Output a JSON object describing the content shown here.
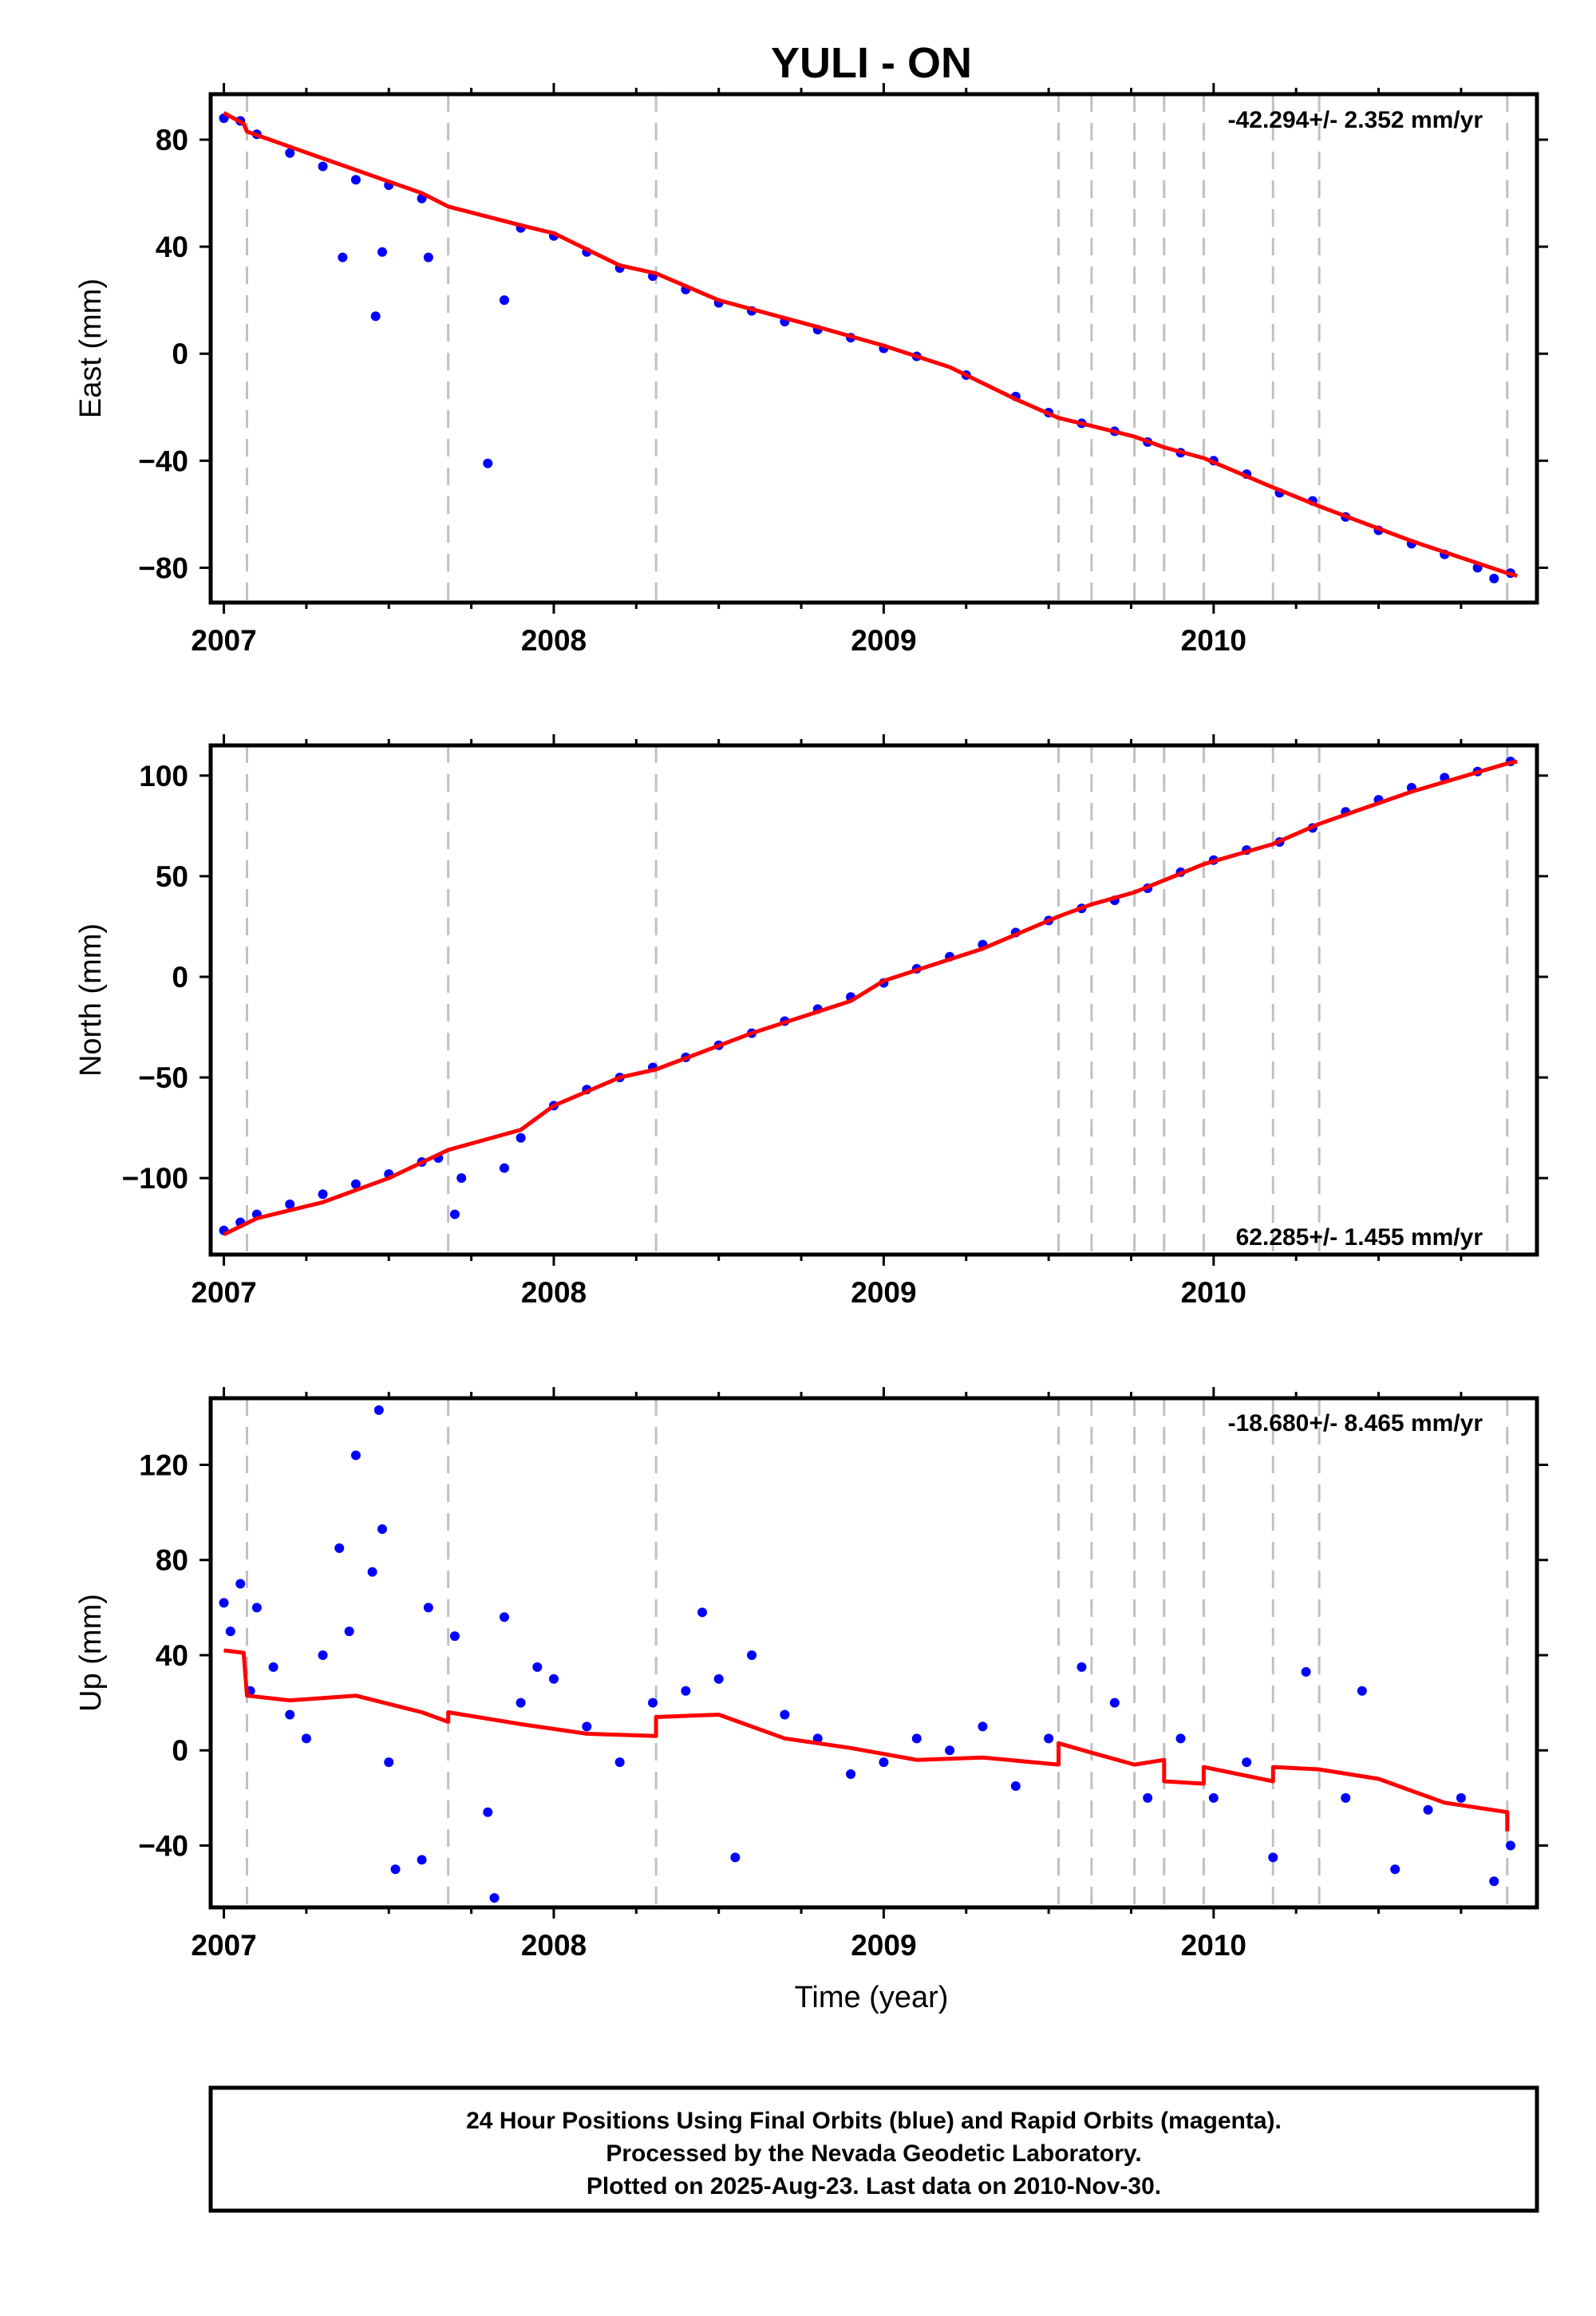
{
  "title": "YULI - ON",
  "xlabel": "Time (year)",
  "footer": {
    "line1": "24 Hour Positions Using Final Orbits (blue) and Rapid Orbits (magenta).",
    "line2": "Processed by the Nevada Geodetic Laboratory.",
    "line3": "Plotted on 2025-Aug-23. Last data on 2010-Nov-30."
  },
  "colors": {
    "observations": "#0000ff",
    "model": "#ff0000",
    "steps": "#c0c0c0"
  },
  "chart_data": [
    {
      "type": "scatter",
      "component": "east",
      "ylabel": "East (mm)",
      "rate_label": "-42.294+/- 2.352 mm/yr",
      "xlim": [
        2006.96,
        2010.98
      ],
      "ylim": [
        -93,
        97
      ],
      "x_ticks": [
        "2007",
        "2008",
        "2009",
        "2010"
      ],
      "y_ticks": [
        80,
        40,
        0,
        -40,
        -80
      ],
      "step_lines": [
        2007.07,
        2007.68,
        2008.31,
        2009.53,
        2009.63,
        2009.76,
        2009.85,
        2009.97,
        2010.18,
        2010.32,
        2010.89
      ],
      "model_line": [
        [
          2007.0,
          90
        ],
        [
          2007.06,
          86
        ],
        [
          2007.07,
          83
        ],
        [
          2007.3,
          73
        ],
        [
          2007.6,
          60
        ],
        [
          2007.68,
          55
        ],
        [
          2007.9,
          48
        ],
        [
          2008.0,
          45
        ],
        [
          2008.2,
          33
        ],
        [
          2008.31,
          30
        ],
        [
          2008.5,
          20
        ],
        [
          2008.8,
          10
        ],
        [
          2009.0,
          3
        ],
        [
          2009.2,
          -5
        ],
        [
          2009.4,
          -17
        ],
        [
          2009.53,
          -24
        ],
        [
          2009.63,
          -27
        ],
        [
          2009.76,
          -31
        ],
        [
          2009.85,
          -35
        ],
        [
          2009.97,
          -39
        ],
        [
          2010.18,
          -50
        ],
        [
          2010.32,
          -57
        ],
        [
          2010.6,
          -70
        ],
        [
          2010.89,
          -82
        ],
        [
          2010.92,
          -83
        ]
      ],
      "points": [
        [
          2007.0,
          88
        ],
        [
          2007.05,
          87
        ],
        [
          2007.1,
          82
        ],
        [
          2007.2,
          75
        ],
        [
          2007.3,
          70
        ],
        [
          2007.4,
          65
        ],
        [
          2007.5,
          63
        ],
        [
          2007.6,
          58
        ],
        [
          2007.36,
          36
        ],
        [
          2007.46,
          14
        ],
        [
          2007.48,
          38
        ],
        [
          2007.62,
          36
        ],
        [
          2007.8,
          -41
        ],
        [
          2007.85,
          20
        ],
        [
          2007.9,
          47
        ],
        [
          2008.0,
          44
        ],
        [
          2008.1,
          38
        ],
        [
          2008.2,
          32
        ],
        [
          2008.3,
          29
        ],
        [
          2008.4,
          24
        ],
        [
          2008.5,
          19
        ],
        [
          2008.6,
          16
        ],
        [
          2008.7,
          12
        ],
        [
          2008.8,
          9
        ],
        [
          2008.9,
          6
        ],
        [
          2009.0,
          2
        ],
        [
          2009.1,
          -1
        ],
        [
          2009.25,
          -8
        ],
        [
          2009.4,
          -16
        ],
        [
          2009.5,
          -22
        ],
        [
          2009.6,
          -26
        ],
        [
          2009.7,
          -29
        ],
        [
          2009.8,
          -33
        ],
        [
          2009.9,
          -37
        ],
        [
          2010.0,
          -40
        ],
        [
          2010.1,
          -45
        ],
        [
          2010.2,
          -52
        ],
        [
          2010.3,
          -55
        ],
        [
          2010.4,
          -61
        ],
        [
          2010.5,
          -66
        ],
        [
          2010.6,
          -71
        ],
        [
          2010.7,
          -75
        ],
        [
          2010.8,
          -80
        ],
        [
          2010.85,
          -84
        ],
        [
          2010.9,
          -82
        ]
      ]
    },
    {
      "type": "scatter",
      "component": "north",
      "ylabel": "North (mm)",
      "rate_label": "62.285+/- 1.455 mm/yr",
      "xlim": [
        2006.96,
        2010.98
      ],
      "ylim": [
        -138,
        115
      ],
      "x_ticks": [
        "2007",
        "2008",
        "2009",
        "2010"
      ],
      "y_ticks": [
        100,
        50,
        0,
        -50,
        -100
      ],
      "step_lines": [
        2007.07,
        2007.68,
        2008.31,
        2009.53,
        2009.63,
        2009.76,
        2009.85,
        2009.97,
        2010.18,
        2010.32,
        2010.89
      ],
      "model_line": [
        [
          2007.0,
          -128
        ],
        [
          2007.1,
          -120
        ],
        [
          2007.3,
          -112
        ],
        [
          2007.5,
          -100
        ],
        [
          2007.68,
          -86
        ],
        [
          2007.9,
          -76
        ],
        [
          2008.0,
          -64
        ],
        [
          2008.2,
          -50
        ],
        [
          2008.31,
          -46
        ],
        [
          2008.6,
          -28
        ],
        [
          2008.9,
          -12
        ],
        [
          2009.0,
          -2
        ],
        [
          2009.3,
          14
        ],
        [
          2009.53,
          30
        ],
        [
          2009.63,
          36
        ],
        [
          2009.76,
          42
        ],
        [
          2009.85,
          48
        ],
        [
          2009.97,
          56
        ],
        [
          2010.18,
          66
        ],
        [
          2010.32,
          76
        ],
        [
          2010.6,
          92
        ],
        [
          2010.89,
          106
        ],
        [
          2010.92,
          107
        ]
      ],
      "points": [
        [
          2007.0,
          -126
        ],
        [
          2007.05,
          -122
        ],
        [
          2007.1,
          -118
        ],
        [
          2007.2,
          -113
        ],
        [
          2007.3,
          -108
        ],
        [
          2007.4,
          -103
        ],
        [
          2007.5,
          -98
        ],
        [
          2007.6,
          -92
        ],
        [
          2007.65,
          -90
        ],
        [
          2007.7,
          -118
        ],
        [
          2007.72,
          -100
        ],
        [
          2007.85,
          -95
        ],
        [
          2007.9,
          -80
        ],
        [
          2008.0,
          -64
        ],
        [
          2008.1,
          -56
        ],
        [
          2008.2,
          -50
        ],
        [
          2008.3,
          -45
        ],
        [
          2008.4,
          -40
        ],
        [
          2008.5,
          -34
        ],
        [
          2008.6,
          -28
        ],
        [
          2008.7,
          -22
        ],
        [
          2008.8,
          -16
        ],
        [
          2008.9,
          -10
        ],
        [
          2009.0,
          -3
        ],
        [
          2009.1,
          4
        ],
        [
          2009.2,
          10
        ],
        [
          2009.3,
          16
        ],
        [
          2009.4,
          22
        ],
        [
          2009.5,
          28
        ],
        [
          2009.6,
          34
        ],
        [
          2009.7,
          38
        ],
        [
          2009.8,
          44
        ],
        [
          2009.9,
          52
        ],
        [
          2010.0,
          58
        ],
        [
          2010.1,
          63
        ],
        [
          2010.2,
          67
        ],
        [
          2010.3,
          74
        ],
        [
          2010.4,
          82
        ],
        [
          2010.5,
          88
        ],
        [
          2010.6,
          94
        ],
        [
          2010.7,
          99
        ],
        [
          2010.8,
          102
        ],
        [
          2010.9,
          107
        ]
      ]
    },
    {
      "type": "scatter",
      "component": "up",
      "ylabel": "Up (mm)",
      "rate_label": "-18.680+/- 8.465 mm/yr",
      "xlim": [
        2006.96,
        2010.98
      ],
      "ylim": [
        -66,
        148
      ],
      "x_ticks": [
        "2007",
        "2008",
        "2009",
        "2010"
      ],
      "y_ticks": [
        120,
        80,
        40,
        0,
        -40
      ],
      "step_lines": [
        2007.07,
        2007.68,
        2008.31,
        2009.53,
        2009.63,
        2009.76,
        2009.85,
        2009.97,
        2010.18,
        2010.32,
        2010.89
      ],
      "model_line": [
        [
          2007.0,
          42
        ],
        [
          2007.06,
          41
        ],
        [
          2007.07,
          23
        ],
        [
          2007.2,
          21
        ],
        [
          2007.4,
          23
        ],
        [
          2007.6,
          16
        ],
        [
          2007.68,
          12
        ],
        [
          2007.68,
          16
        ],
        [
          2007.9,
          11
        ],
        [
          2008.1,
          7
        ],
        [
          2008.31,
          6
        ],
        [
          2008.31,
          14
        ],
        [
          2008.5,
          15
        ],
        [
          2008.7,
          5
        ],
        [
          2008.9,
          1
        ],
        [
          2009.1,
          -4
        ],
        [
          2009.3,
          -3
        ],
        [
          2009.53,
          -6
        ],
        [
          2009.53,
          3
        ],
        [
          2009.63,
          -1
        ],
        [
          2009.76,
          -6
        ],
        [
          2009.85,
          -4
        ],
        [
          2009.85,
          -13
        ],
        [
          2009.97,
          -14
        ],
        [
          2009.97,
          -7
        ],
        [
          2010.18,
          -13
        ],
        [
          2010.18,
          -7
        ],
        [
          2010.32,
          -8
        ],
        [
          2010.5,
          -12
        ],
        [
          2010.7,
          -22
        ],
        [
          2010.89,
          -26
        ],
        [
          2010.89,
          -34
        ]
      ],
      "points": [
        [
          2007.0,
          62
        ],
        [
          2007.02,
          50
        ],
        [
          2007.05,
          70
        ],
        [
          2007.08,
          25
        ],
        [
          2007.1,
          60
        ],
        [
          2007.15,
          35
        ],
        [
          2007.2,
          15
        ],
        [
          2007.25,
          5
        ],
        [
          2007.3,
          40
        ],
        [
          2007.35,
          85
        ],
        [
          2007.38,
          50
        ],
        [
          2007.4,
          124
        ],
        [
          2007.45,
          75
        ],
        [
          2007.47,
          143
        ],
        [
          2007.48,
          93
        ],
        [
          2007.5,
          -5
        ],
        [
          2007.52,
          -50
        ],
        [
          2007.6,
          -46
        ],
        [
          2007.62,
          60
        ],
        [
          2007.7,
          48
        ],
        [
          2007.8,
          -26
        ],
        [
          2007.82,
          -62
        ],
        [
          2007.85,
          56
        ],
        [
          2007.9,
          20
        ],
        [
          2007.95,
          35
        ],
        [
          2008.0,
          30
        ],
        [
          2008.1,
          10
        ],
        [
          2008.2,
          -5
        ],
        [
          2008.3,
          20
        ],
        [
          2008.4,
          25
        ],
        [
          2008.45,
          58
        ],
        [
          2008.5,
          30
        ],
        [
          2008.55,
          -45
        ],
        [
          2008.6,
          40
        ],
        [
          2008.7,
          15
        ],
        [
          2008.8,
          5
        ],
        [
          2008.9,
          -10
        ],
        [
          2009.0,
          -5
        ],
        [
          2009.1,
          5
        ],
        [
          2009.2,
          0
        ],
        [
          2009.3,
          10
        ],
        [
          2009.4,
          -15
        ],
        [
          2009.5,
          5
        ],
        [
          2009.6,
          35
        ],
        [
          2009.7,
          20
        ],
        [
          2009.8,
          -20
        ],
        [
          2009.9,
          5
        ],
        [
          2010.0,
          -20
        ],
        [
          2010.1,
          -5
        ],
        [
          2010.18,
          -45
        ],
        [
          2010.28,
          33
        ],
        [
          2010.4,
          -20
        ],
        [
          2010.45,
          25
        ],
        [
          2010.55,
          -50
        ],
        [
          2010.65,
          -25
        ],
        [
          2010.75,
          -20
        ],
        [
          2010.85,
          -55
        ],
        [
          2010.9,
          -40
        ]
      ]
    }
  ]
}
